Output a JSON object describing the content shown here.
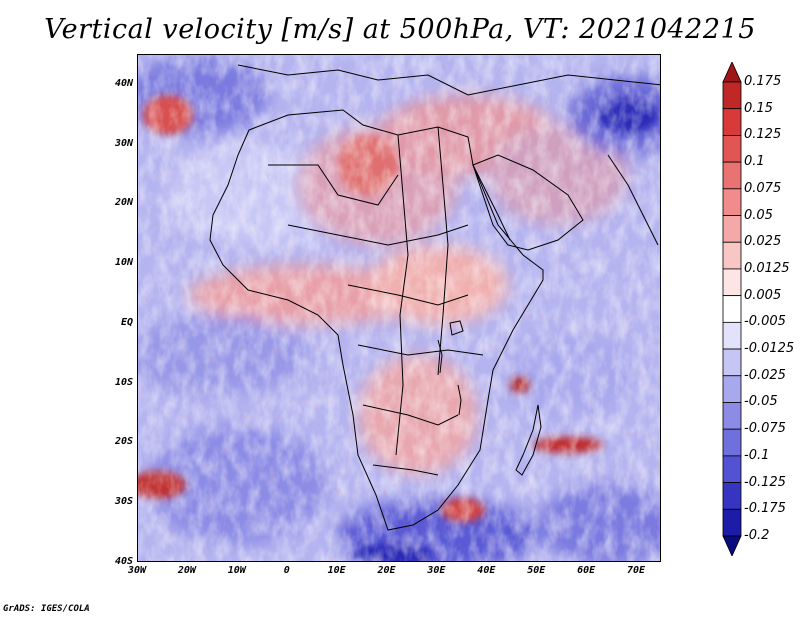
{
  "title": "Vertical velocity [m/s] at 500hPa, VT: 2021042215",
  "footer": "GrADS: IGES/COLA",
  "map": {
    "type": "shaded-field",
    "region": "Africa and surrounding oceans",
    "lon_range": [
      -30,
      75
    ],
    "lat_range": [
      -40,
      45
    ],
    "lat_labels": [
      "40N",
      "30N",
      "20N",
      "10N",
      "EQ",
      "10S",
      "20S",
      "30S",
      "40S"
    ],
    "lat_values": [
      40,
      30,
      20,
      10,
      0,
      -10,
      -20,
      -30,
      -40
    ],
    "lon_labels": [
      "30W",
      "20W",
      "10W",
      "0",
      "10E",
      "20E",
      "30E",
      "40E",
      "50E",
      "60E",
      "70E"
    ],
    "lon_values": [
      -30,
      -20,
      -10,
      0,
      10,
      20,
      30,
      40,
      50,
      60,
      70
    ]
  },
  "colorbar": {
    "labels": [
      "0.175",
      "0.15",
      "0.125",
      "0.1",
      "0.075",
      "0.05",
      "0.025",
      "0.0125",
      "0.005",
      "-0.005",
      "-0.0125",
      "-0.025",
      "-0.05",
      "-0.075",
      "-0.1",
      "-0.125",
      "-0.175",
      "-0.2"
    ],
    "colors": [
      "#a01515",
      "#c02828",
      "#d83a3a",
      "#e25555",
      "#ea7272",
      "#f08c8c",
      "#f5a8a8",
      "#f9c6c6",
      "#fde5e5",
      "#ffffff",
      "#e2e2fb",
      "#c6c6f5",
      "#a8a8ee",
      "#8c8ce6",
      "#6f6fdd",
      "#5252d2",
      "#3535c2",
      "#1c1ca8",
      "#0a0a80"
    ]
  },
  "palette": {
    "land_border": "#000000",
    "frame": "#000000"
  }
}
